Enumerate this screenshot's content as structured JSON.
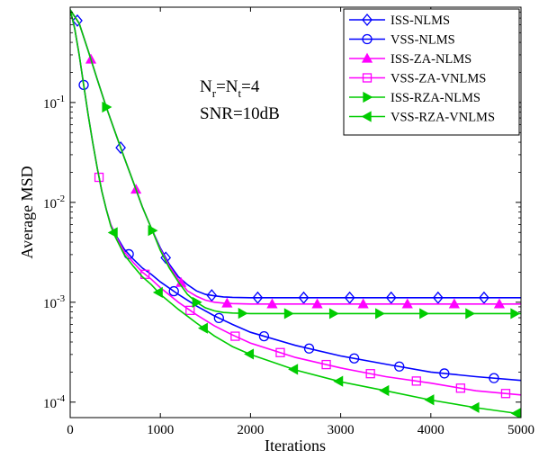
{
  "chart_data": {
    "type": "line",
    "xlabel": "Iterations",
    "ylabel": "Average MSD",
    "xlim": [
      0,
      5000
    ],
    "ylim": [
      7e-05,
      0.9
    ],
    "yscale": "log",
    "grid": false,
    "legend_position": "top-right",
    "x_ticks": [
      0,
      1000,
      2000,
      3000,
      4000,
      5000
    ],
    "x_tick_labels": [
      "0",
      "1000",
      "2000",
      "3000",
      "4000",
      "5000"
    ],
    "y_ticks": [
      0.0001,
      0.001,
      0.01,
      0.1
    ],
    "y_tick_labels": [
      {
        "base": "10",
        "exp": "-4"
      },
      {
        "base": "10",
        "exp": "-3"
      },
      {
        "base": "10",
        "exp": "-2"
      },
      {
        "base": "10",
        "exp": "-1"
      }
    ],
    "annotations": [
      {
        "main": "N",
        "sub1": "r",
        "mid": "=N",
        "sub2": "t",
        "tail": "=4"
      },
      {
        "main": "SNR=10dB"
      }
    ],
    "series": [
      {
        "name": "ISS-NLMS",
        "color": "#0000ff",
        "marker": "diamond",
        "x": [
          0,
          100,
          200,
          300,
          400,
          500,
          600,
          700,
          800,
          900,
          1000,
          1100,
          1200,
          1300,
          1400,
          1500,
          1600,
          1700,
          1800,
          2000,
          2500,
          3000,
          3500,
          4000,
          4500,
          5000
        ],
        "y": [
          0.85,
          0.62,
          0.33,
          0.17,
          0.09,
          0.05,
          0.028,
          0.016,
          0.009,
          0.0055,
          0.0035,
          0.0024,
          0.0018,
          0.0015,
          0.0013,
          0.0012,
          0.00116,
          0.00113,
          0.00112,
          0.00111,
          0.00111,
          0.00111,
          0.00111,
          0.00111,
          0.00111,
          0.00111
        ],
        "markers_x": [
          80,
          560,
          1060,
          1570,
          2080,
          2590,
          3100,
          3560,
          4080,
          4590
        ]
      },
      {
        "name": "VSS-NLMS",
        "color": "#0000ff",
        "marker": "circle",
        "x": [
          0,
          50,
          100,
          150,
          200,
          250,
          300,
          350,
          400,
          450,
          500,
          600,
          700,
          800,
          900,
          1000,
          1200,
          1400,
          1600,
          1800,
          2000,
          2500,
          3000,
          3500,
          4000,
          4500,
          5000
        ],
        "y": [
          0.85,
          0.55,
          0.3,
          0.15,
          0.075,
          0.04,
          0.022,
          0.013,
          0.0085,
          0.006,
          0.0048,
          0.0034,
          0.0027,
          0.0022,
          0.0019,
          0.0016,
          0.0012,
          0.00092,
          0.00073,
          0.0006,
          0.0005,
          0.00037,
          0.00029,
          0.00024,
          0.0002,
          0.00018,
          0.000165
        ],
        "markers_x": [
          150,
          650,
          1150,
          1650,
          2150,
          2650,
          3150,
          3650,
          4150,
          4700
        ]
      },
      {
        "name": "ISS-ZA-NLMS",
        "color": "#ff00ff",
        "marker": "triangle-up",
        "x": [
          0,
          100,
          200,
          300,
          400,
          500,
          600,
          700,
          800,
          900,
          1000,
          1100,
          1200,
          1300,
          1400,
          1500,
          1600,
          1700,
          1800,
          2000,
          2500,
          3000,
          3500,
          4000,
          4500,
          5000
        ],
        "y": [
          0.85,
          0.62,
          0.33,
          0.17,
          0.09,
          0.05,
          0.028,
          0.016,
          0.009,
          0.0055,
          0.0034,
          0.0023,
          0.0017,
          0.0013,
          0.00115,
          0.00105,
          0.001,
          0.00098,
          0.00097,
          0.00096,
          0.00096,
          0.00096,
          0.00096,
          0.00096,
          0.00096,
          0.00096
        ],
        "markers_x": [
          230,
          730,
          1230,
          1740,
          2240,
          2740,
          3250,
          3740,
          4260,
          4760
        ]
      },
      {
        "name": "VSS-ZA-VNLMS",
        "color": "#ff00ff",
        "marker": "square",
        "x": [
          0,
          50,
          100,
          150,
          200,
          250,
          300,
          350,
          400,
          450,
          500,
          600,
          700,
          800,
          900,
          1000,
          1200,
          1400,
          1600,
          1800,
          2000,
          2500,
          3000,
          3500,
          4000,
          4500,
          5000
        ],
        "y": [
          0.85,
          0.55,
          0.3,
          0.15,
          0.075,
          0.04,
          0.022,
          0.013,
          0.0085,
          0.006,
          0.0047,
          0.0032,
          0.0025,
          0.002,
          0.0017,
          0.0014,
          0.001,
          0.00075,
          0.00058,
          0.00047,
          0.00039,
          0.00028,
          0.00022,
          0.00018,
          0.000155,
          0.00013,
          0.000118
        ],
        "markers_x": [
          320,
          830,
          1330,
          1830,
          2330,
          2840,
          3330,
          3840,
          4330,
          4830
        ]
      },
      {
        "name": "ISS-RZA-NLMS",
        "color": "#00cc00",
        "marker": "triangle-right",
        "x": [
          0,
          100,
          200,
          300,
          400,
          500,
          600,
          700,
          800,
          900,
          1000,
          1100,
          1200,
          1300,
          1400,
          1500,
          1600,
          1700,
          1800,
          2000,
          2500,
          3000,
          3500,
          4000,
          4500,
          5000
        ],
        "y": [
          0.85,
          0.62,
          0.33,
          0.17,
          0.09,
          0.05,
          0.028,
          0.016,
          0.009,
          0.0055,
          0.0033,
          0.0022,
          0.0016,
          0.0012,
          0.001,
          0.00088,
          0.00082,
          0.00079,
          0.00078,
          0.00077,
          0.00077,
          0.00077,
          0.00077,
          0.00077,
          0.00077,
          0.00077
        ],
        "markers_x": [
          400,
          910,
          1400,
          1910,
          2420,
          2920,
          3430,
          3920,
          4430,
          4930
        ]
      },
      {
        "name": "VSS-RZA-VNLMS",
        "color": "#00cc00",
        "marker": "triangle-left",
        "x": [
          0,
          50,
          100,
          150,
          200,
          250,
          300,
          350,
          400,
          450,
          500,
          600,
          700,
          800,
          900,
          1000,
          1200,
          1400,
          1600,
          1800,
          2000,
          2500,
          3000,
          3500,
          4000,
          4500,
          5000
        ],
        "y": [
          0.85,
          0.55,
          0.3,
          0.15,
          0.075,
          0.04,
          0.022,
          0.013,
          0.0085,
          0.0058,
          0.0045,
          0.003,
          0.0023,
          0.0018,
          0.0015,
          0.0012,
          0.00085,
          0.00062,
          0.00046,
          0.00036,
          0.0003,
          0.00021,
          0.00016,
          0.00013,
          0.000105,
          8.8e-05,
          7.6e-05
        ],
        "markers_x": [
          480,
          980,
          1480,
          1990,
          2480,
          2980,
          3490,
          3990,
          4490,
          4950
        ]
      }
    ]
  }
}
